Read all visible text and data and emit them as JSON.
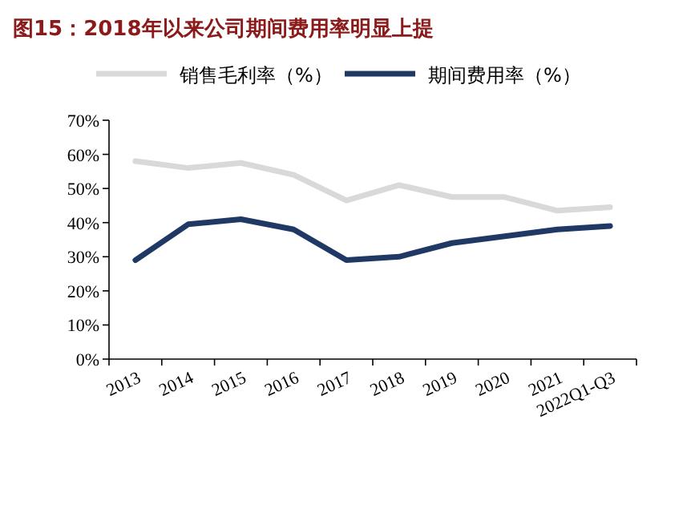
{
  "chart_data": {
    "type": "line",
    "title": "图15：2018年以来公司期间费用率明显上提",
    "categories": [
      "2013",
      "2014",
      "2015",
      "2016",
      "2017",
      "2018",
      "2019",
      "2020",
      "2021",
      "2022Q1-Q3"
    ],
    "series": [
      {
        "name": "销售毛利率（%）",
        "color": "#d9d9d9",
        "values": [
          58,
          56,
          57.5,
          54,
          46.5,
          51,
          47.5,
          47.5,
          43.5,
          44.5
        ]
      },
      {
        "name": "期间费用率（%）",
        "color": "#1f3864",
        "values": [
          29,
          39.5,
          41,
          38,
          29,
          30,
          34,
          36,
          38,
          39
        ]
      }
    ],
    "ylim": [
      0,
      70
    ],
    "yticks": [
      {
        "value": 0,
        "label": "0%"
      },
      {
        "value": 10,
        "label": "10%"
      },
      {
        "value": 20,
        "label": "20%"
      },
      {
        "value": 30,
        "label": "30%"
      },
      {
        "value": 40,
        "label": "40%"
      },
      {
        "value": 50,
        "label": "50%"
      },
      {
        "value": 60,
        "label": "60%"
      },
      {
        "value": 70,
        "label": "70%"
      }
    ],
    "legend": "top",
    "grid": false,
    "marker": "none",
    "line_style": "solid"
  }
}
